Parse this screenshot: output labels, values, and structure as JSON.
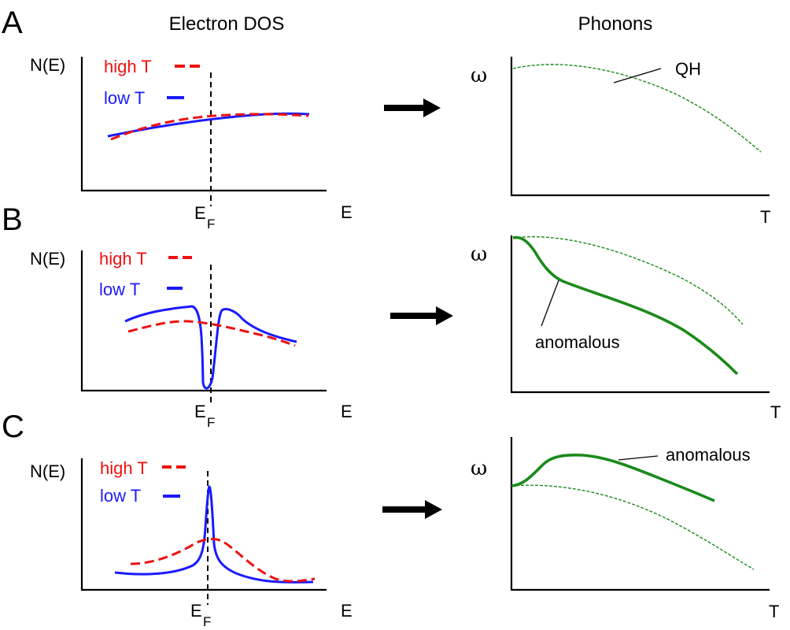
{
  "column_titles": {
    "left": "Electron DOS",
    "right": "Phonons"
  },
  "axis_labels": {
    "dos_y": "N(E)",
    "dos_x": "E",
    "fermi_main": "E",
    "fermi_sub": "F",
    "phonon_y": "ω",
    "phonon_x": "T"
  },
  "legend": {
    "high": "high T",
    "low": "low T"
  },
  "colors": {
    "high_T": "#ee1111",
    "low_T": "#1a1aff",
    "phonon": "#1a8a1a",
    "axis": "#000000"
  },
  "panels": [
    {
      "letter": "A",
      "phonon_label": "QH",
      "phonon_x_label": "T"
    },
    {
      "letter": "B",
      "phonon_label": "anomalous",
      "phonon_x_label": "T"
    },
    {
      "letter": "C",
      "phonon_label": "anomalous",
      "phonon_x_label": "T"
    }
  ]
}
